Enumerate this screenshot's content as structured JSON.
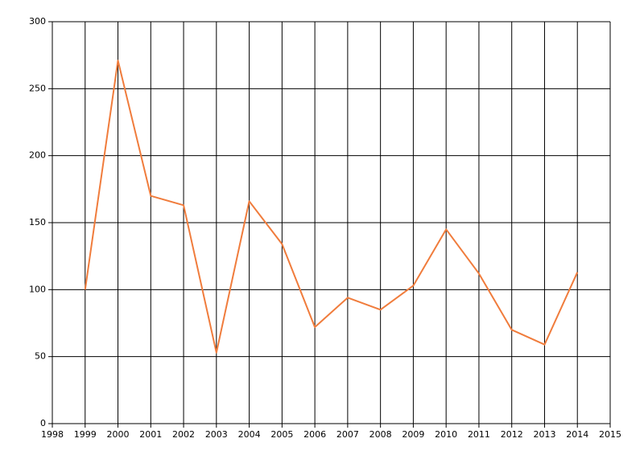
{
  "chart_data": {
    "type": "line",
    "x": [
      1999,
      2000,
      2001,
      2002,
      2003,
      2004,
      2005,
      2006,
      2007,
      2008,
      2009,
      2010,
      2011,
      2012,
      2013,
      2014
    ],
    "series": [
      {
        "color": "#f07c3c",
        "values": [
          100,
          271,
          170,
          163,
          53,
          166,
          134,
          72,
          94,
          85,
          103,
          145,
          112,
          70,
          59,
          113
        ]
      }
    ],
    "xlim": [
      1998,
      2015
    ],
    "xticks": [
      1998,
      1999,
      2000,
      2001,
      2002,
      2003,
      2004,
      2005,
      2006,
      2007,
      2008,
      2009,
      2010,
      2011,
      2012,
      2013,
      2014,
      2015
    ],
    "ylim": [
      0,
      300
    ],
    "yticks": [
      0,
      50,
      100,
      150,
      200,
      250,
      300
    ],
    "grid": true
  }
}
